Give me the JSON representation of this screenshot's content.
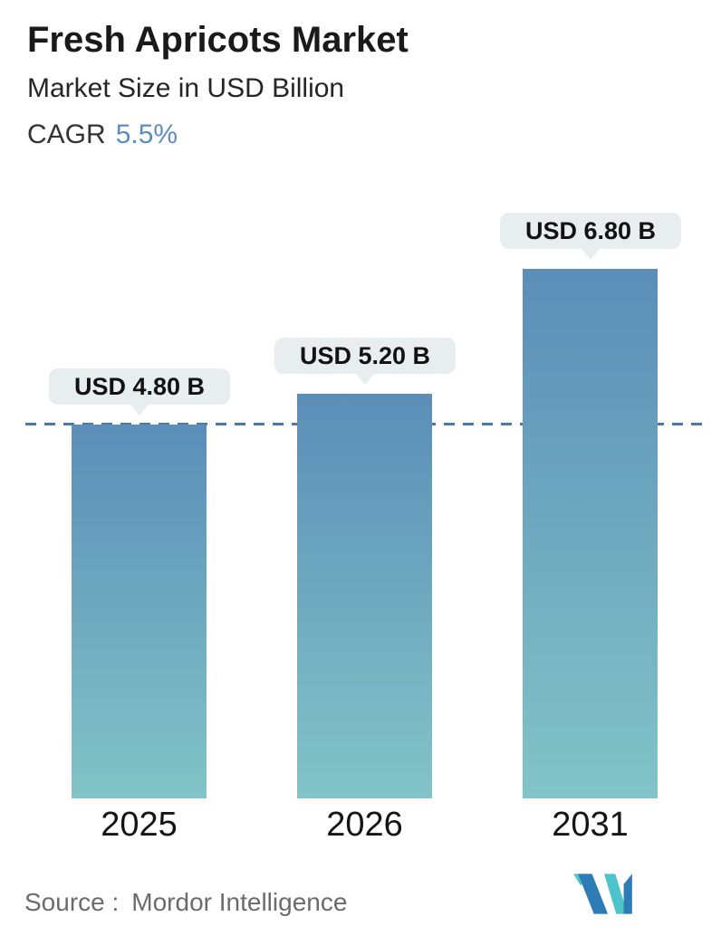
{
  "header": {
    "title": "Fresh Apricots Market",
    "subtitle": "Market Size in USD Billion",
    "cagr_label": "CAGR",
    "cagr_value": "5.5%"
  },
  "chart_data": {
    "type": "bar",
    "categories": [
      "2025",
      "2026",
      "2031"
    ],
    "values": [
      4.8,
      5.2,
      6.8
    ],
    "value_labels": [
      "USD 4.80 B",
      "USD 5.20 B",
      "USD 6.80 B"
    ],
    "title": "Fresh Apricots Market",
    "ylabel": "Market Size in USD Billion",
    "ylim": [
      0,
      7.5
    ],
    "legend": "none",
    "grid": "single dashed horizontal reference line at the 2025 value (4.8)",
    "cagr": "5.5%",
    "colors": {
      "bar_gradient_top": "#5b8eb8",
      "bar_gradient_bottom": "#82c4c7",
      "dashed_line": "#4a7ba8",
      "badge_background": "#e8edef",
      "badge_text": "#121212",
      "accent_blue": "#5d8cbd",
      "title_text": "#1a1a1a",
      "source_text": "#6b6b6b",
      "logo_teal": "#4cc4c9",
      "logo_blue": "#2d7cb5"
    }
  },
  "footer": {
    "source_label": "Source :",
    "source_value": "Mordor Intelligence",
    "logo": "mordor-intelligence-logo"
  }
}
